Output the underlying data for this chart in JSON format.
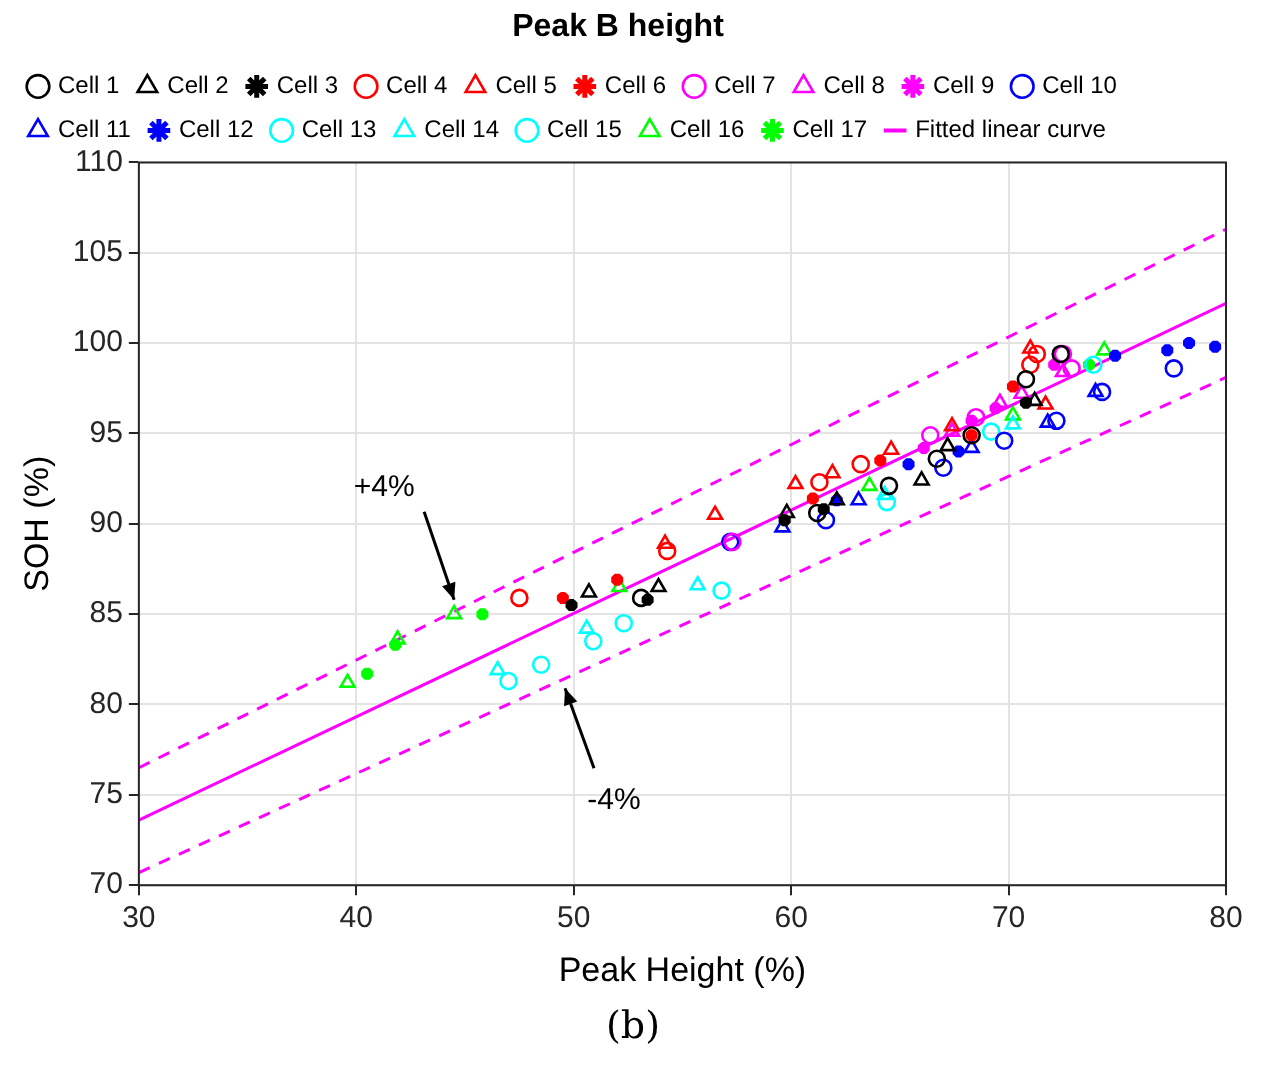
{
  "chart_data": {
    "type": "scatter",
    "title": "Peak B height",
    "xlabel": "Peak Height (%)",
    "ylabel": "SOH (%)",
    "xlim": [
      30,
      80
    ],
    "xticks": [
      30,
      40,
      50,
      60,
      70,
      80
    ],
    "ylim": [
      70,
      110
    ],
    "yticks": [
      70,
      75,
      80,
      85,
      90,
      95,
      100,
      105,
      110
    ],
    "grid": true,
    "legend": "top left",
    "annotations": [
      {
        "text": "+4%",
        "x": 44.5,
        "y": 85.8
      },
      {
        "text": "-4%",
        "x": 49.6,
        "y": 80.9
      },
      "(b)"
    ],
    "series": [
      {
        "name": "Cell 1",
        "color": "#000000",
        "marker": "circle",
        "x": [
          53.1,
          61.2,
          64.5,
          66.7,
          68.3,
          70.8,
          72.4
        ],
        "values": [
          85.9,
          90.6,
          92.1,
          93.6,
          94.9,
          98.0,
          99.4
        ]
      },
      {
        "name": "Cell 2",
        "color": "#000000",
        "marker": "triangle",
        "x": [
          50.7,
          53.9,
          59.8,
          62.1,
          66.0,
          67.2,
          71.2
        ],
        "values": [
          86.2,
          86.5,
          90.6,
          91.3,
          92.4,
          94.3,
          96.8
        ]
      },
      {
        "name": "Cell 3",
        "color": "#000000",
        "marker": "cross",
        "x": [
          49.9,
          53.4,
          59.7,
          61.5,
          70.8
        ],
        "values": [
          85.5,
          85.8,
          90.2,
          90.8,
          96.7
        ]
      },
      {
        "name": "Cell 4",
        "color": "#ff0000",
        "marker": "circle",
        "x": [
          47.5,
          54.3,
          61.3,
          63.2,
          71.0,
          71.3
        ],
        "values": [
          85.9,
          88.5,
          92.3,
          93.3,
          98.8,
          99.4
        ]
      },
      {
        "name": "Cell 5",
        "color": "#ff0000",
        "marker": "triangle",
        "x": [
          54.2,
          56.5,
          60.2,
          61.9,
          64.6,
          67.4,
          71.7,
          71.0
        ],
        "values": [
          88.9,
          90.5,
          92.2,
          92.8,
          94.1,
          95.4,
          96.6,
          99.7
        ]
      },
      {
        "name": "Cell 6",
        "color": "#ff0000",
        "marker": "cross",
        "x": [
          49.5,
          52.0,
          61.0,
          64.1,
          68.3,
          70.2
        ],
        "values": [
          85.9,
          86.9,
          91.4,
          93.5,
          94.9,
          97.6
        ]
      },
      {
        "name": "Cell 7",
        "color": "#ff00ff",
        "marker": "circle",
        "x": [
          57.3,
          66.4,
          68.5,
          72.5,
          72.9
        ],
        "values": [
          89.0,
          94.9,
          95.9,
          99.4,
          98.6
        ]
      },
      {
        "name": "Cell 8",
        "color": "#ff00ff",
        "marker": "triangle",
        "x": [
          67.4,
          69.6,
          70.6,
          72.5
        ],
        "values": [
          95.1,
          96.7,
          97.2,
          98.4
        ]
      },
      {
        "name": "Cell 9",
        "color": "#ff00ff",
        "marker": "cross",
        "x": [
          66.1,
          68.3,
          69.4,
          72.1
        ],
        "values": [
          94.2,
          95.7,
          96.4,
          98.8
        ]
      },
      {
        "name": "Cell 10",
        "color": "#0000ff",
        "marker": "circle",
        "x": [
          57.2,
          61.6,
          67.0,
          69.8,
          72.2,
          74.3,
          77.6
        ],
        "values": [
          89.0,
          90.2,
          93.1,
          94.6,
          95.7,
          97.3,
          98.6
        ]
      },
      {
        "name": "Cell 11",
        "color": "#0000ff",
        "marker": "triangle",
        "x": [
          59.6,
          63.1,
          68.3,
          71.8,
          74.0
        ],
        "values": [
          89.8,
          91.3,
          94.2,
          95.6,
          97.3
        ]
      },
      {
        "name": "Cell 12",
        "color": "#0000ff",
        "marker": "cross",
        "x": [
          62.1,
          65.4,
          67.7,
          74.9,
          77.3,
          78.3,
          79.5
        ],
        "values": [
          91.3,
          93.3,
          94.0,
          99.3,
          99.6,
          100.0,
          99.8
        ]
      },
      {
        "name": "Cell 13",
        "color": "#00ffff",
        "marker": "circle",
        "x": [
          48.5,
          52.3,
          64.4,
          69.2
        ],
        "values": [
          82.2,
          84.5,
          91.2,
          95.1
        ]
      },
      {
        "name": "Cell 14",
        "color": "#00ffff",
        "marker": "triangle",
        "x": [
          46.5,
          50.6,
          55.7,
          64.3,
          70.2
        ],
        "values": [
          81.9,
          84.2,
          86.6,
          91.6,
          95.5
        ]
      },
      {
        "name": "Cell 15",
        "color": "#00ffff",
        "marker": "circle",
        "x": [
          47.0,
          50.9,
          56.8,
          73.9
        ],
        "values": [
          81.3,
          83.5,
          86.3,
          98.8
        ]
      },
      {
        "name": "Cell 16",
        "color": "#00ff00",
        "marker": "triangle",
        "x": [
          39.6,
          41.9,
          44.5,
          52.1,
          63.6,
          70.2,
          74.4
        ],
        "values": [
          81.2,
          83.6,
          85.0,
          86.5,
          92.1,
          96.0,
          99.6
        ]
      },
      {
        "name": "Cell 17",
        "color": "#00ff00",
        "marker": "cross",
        "x": [
          40.5,
          41.8,
          45.8,
          73.7
        ],
        "values": [
          81.7,
          83.3,
          85.0,
          98.8
        ]
      },
      {
        "name": "Fitted linear curve",
        "type": "line",
        "color": "#ff00ff",
        "line_style": "solid",
        "marker": "none",
        "x": [
          30,
          80
        ],
        "values": [
          73.6,
          102.2
        ]
      },
      {
        "type": "line",
        "color": "#ff00ff",
        "line_style": "dashed",
        "marker": "none",
        "x": [
          30,
          80
        ],
        "values": [
          76.5,
          106.3
        ]
      },
      {
        "type": "line",
        "color": "#ff00ff",
        "line_style": "dashed",
        "marker": "none",
        "x": [
          30,
          80
        ],
        "values": [
          70.7,
          98.1
        ]
      }
    ]
  }
}
